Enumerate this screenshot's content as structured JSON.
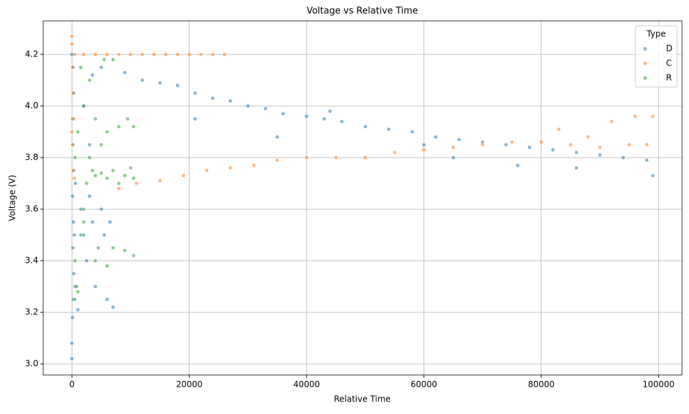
{
  "chart_data": {
    "type": "scatter",
    "title": "Voltage vs Relative Time",
    "x_label": "Relative Time",
    "y_label": "Voltage (V)",
    "legend_title": "Type",
    "legend": "upper right",
    "grid": true,
    "xlim": [
      -4900,
      104000
    ],
    "ylim": [
      2.957,
      4.33
    ],
    "xticks": [
      0,
      20000,
      40000,
      60000,
      80000,
      100000
    ],
    "yticks": [
      {
        "value": 3,
        "label": "3.0"
      },
      3.2,
      3.4,
      3.6,
      3.8,
      {
        "value": 4,
        "label": "4.0"
      },
      4.2
    ],
    "series": [
      {
        "name": "D",
        "color": "#1f77b4",
        "x": [
          0,
          0,
          100,
          200,
          300,
          150,
          250,
          100,
          300,
          200,
          100,
          300,
          200,
          0,
          500,
          400,
          600,
          1000,
          1500,
          2000,
          2500,
          3000,
          3500,
          4000,
          4500,
          5000,
          5500,
          6000,
          6500,
          7000,
          3500,
          5000,
          3000,
          2000,
          9000,
          12000,
          15000,
          18000,
          21000,
          24000,
          27000,
          30000,
          33000,
          36000,
          40000,
          43000,
          46000,
          50000,
          54000,
          58000,
          62000,
          66000,
          70000,
          74000,
          78000,
          82000,
          86000,
          90000,
          94000,
          98000,
          21000,
          35000,
          60000,
          76000,
          86000,
          99000,
          44000,
          65000
        ],
        "values": [
          3.02,
          3.08,
          3.18,
          3.25,
          3.35,
          3.45,
          3.55,
          3.65,
          3.75,
          3.85,
          3.95,
          4.05,
          4.15,
          4.2,
          3.3,
          3.5,
          3.7,
          3.21,
          3.6,
          3.5,
          3.4,
          3.65,
          3.55,
          3.3,
          3.45,
          3.6,
          3.5,
          3.25,
          3.55,
          3.22,
          4.12,
          4.15,
          3.85,
          4.0,
          4.13,
          4.1,
          4.09,
          4.08,
          4.05,
          4.03,
          4.02,
          4.0,
          3.99,
          3.97,
          3.96,
          3.95,
          3.94,
          3.92,
          3.91,
          3.9,
          3.88,
          3.87,
          3.86,
          3.85,
          3.84,
          3.83,
          3.82,
          3.81,
          3.8,
          3.79,
          3.95,
          3.88,
          3.85,
          3.77,
          3.76,
          3.73,
          3.98,
          3.8
        ]
      },
      {
        "name": "C",
        "color": "#ff7f0e",
        "x": [
          0,
          0,
          100,
          200,
          300,
          100,
          200,
          400,
          0,
          500,
          2000,
          4000,
          6000,
          8000,
          10000,
          12000,
          14000,
          16000,
          18000,
          20000,
          22000,
          24000,
          26000,
          8000,
          11000,
          15000,
          19000,
          23000,
          27000,
          31000,
          35000,
          40000,
          45000,
          50000,
          55000,
          60000,
          65000,
          70000,
          75000,
          80000,
          85000,
          90000,
          95000,
          98000,
          92000,
          96000,
          99000,
          83000,
          88000
        ],
        "values": [
          4.27,
          4.24,
          4.15,
          4.05,
          3.95,
          3.85,
          3.75,
          3.72,
          3.9,
          4.2,
          4.2,
          4.2,
          4.2,
          4.2,
          4.2,
          4.2,
          4.2,
          4.2,
          4.2,
          4.2,
          4.2,
          4.2,
          4.2,
          3.68,
          3.7,
          3.71,
          3.73,
          3.75,
          3.76,
          3.77,
          3.79,
          3.8,
          3.8,
          3.8,
          3.82,
          3.83,
          3.84,
          3.85,
          3.86,
          3.86,
          3.85,
          3.84,
          3.85,
          3.85,
          3.94,
          3.96,
          3.96,
          3.91,
          3.88
        ]
      },
      {
        "name": "R",
        "color": "#2ca02c",
        "x": [
          500,
          800,
          1000,
          500,
          1500,
          2000,
          2500,
          3000,
          1000,
          2000,
          3000,
          1500,
          500,
          3500,
          4000,
          5000,
          6000,
          7000,
          8000,
          9000,
          10000,
          10500,
          4000,
          6000,
          8000,
          9500,
          10500,
          5000,
          7000,
          9000,
          10500,
          4000,
          6000,
          5500,
          7000,
          2000
        ],
        "values": [
          3.25,
          3.3,
          3.28,
          3.4,
          3.5,
          3.6,
          3.7,
          3.8,
          3.9,
          4.0,
          4.1,
          4.15,
          3.8,
          3.75,
          3.73,
          3.74,
          3.72,
          3.75,
          3.7,
          3.73,
          3.76,
          3.72,
          3.95,
          3.9,
          3.92,
          3.95,
          3.92,
          3.85,
          3.45,
          3.44,
          3.42,
          3.4,
          3.38,
          4.18,
          4.18,
          3.55
        ]
      }
    ]
  }
}
